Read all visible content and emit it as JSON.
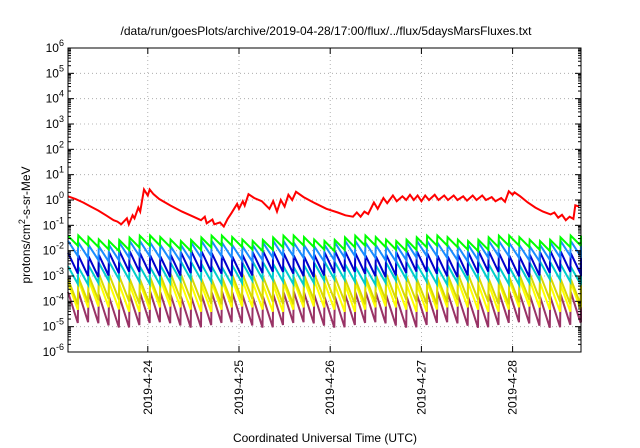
{
  "chart_data": {
    "type": "line",
    "title": "/data/run/goesPlots/archive/2019-04-28/17:00/flux/../flux/5daysMarsFluxes.txt",
    "xlabel": "Coordinated Universal Time (UTC)",
    "ylabel_parts": {
      "base": "protons/cm",
      "sup": "2",
      "rest": "-s-sr-MeV"
    },
    "y_scale": "log",
    "ylim": [
      1e-06,
      1000000.0
    ],
    "xlim": [
      "2019-04-23T03:00",
      "2019-04-28T18:00"
    ],
    "grid": true,
    "y_ticks": [
      {
        "exp": -6,
        "base": "10",
        "sup": "-6"
      },
      {
        "exp": -5,
        "base": "10",
        "sup": "-5"
      },
      {
        "exp": -4,
        "base": "10",
        "sup": "-4"
      },
      {
        "exp": -3,
        "base": "10",
        "sup": "-3"
      },
      {
        "exp": -2,
        "base": "10",
        "sup": "-2"
      },
      {
        "exp": -1,
        "base": "10",
        "sup": "-1"
      },
      {
        "exp": 0,
        "base": "10",
        "sup": "0"
      },
      {
        "exp": 1,
        "base": "10",
        "sup": "1"
      },
      {
        "exp": 2,
        "base": "10",
        "sup": "2"
      },
      {
        "exp": 3,
        "base": "10",
        "sup": "3"
      },
      {
        "exp": 4,
        "base": "10",
        "sup": "4"
      },
      {
        "exp": 5,
        "base": "10",
        "sup": "5"
      },
      {
        "exp": 6,
        "base": "10",
        "sup": "6"
      }
    ],
    "x_ticks": [
      {
        "t": "2019-04-24T00:00",
        "label": "2019-4-24"
      },
      {
        "t": "2019-04-25T00:00",
        "label": "2019-4-25"
      },
      {
        "t": "2019-04-26T00:00",
        "label": "2019-4-26"
      },
      {
        "t": "2019-04-27T00:00",
        "label": "2019-4-27"
      },
      {
        "t": "2019-04-28T00:00",
        "label": "2019-4-28"
      }
    ],
    "series": [
      {
        "color": "#ff0000",
        "values": [
          [
            "2019-04-23T03:00",
            1.4
          ],
          [
            "2019-04-23T05:00",
            1.1
          ],
          [
            "2019-04-23T07:00",
            0.8
          ],
          [
            "2019-04-23T09:00",
            0.55
          ],
          [
            "2019-04-23T11:00",
            0.38
          ],
          [
            "2019-04-23T13:00",
            0.25
          ],
          [
            "2019-04-23T15:00",
            0.16
          ],
          [
            "2019-04-23T16:00",
            0.14
          ],
          [
            "2019-04-23T17:00",
            0.11
          ],
          [
            "2019-04-23T18:30",
            0.19
          ],
          [
            "2019-04-23T19:00",
            0.11
          ],
          [
            "2019-04-23T20:00",
            0.25
          ],
          [
            "2019-04-23T20:30",
            0.19
          ],
          [
            "2019-04-23T21:30",
            0.5
          ],
          [
            "2019-04-23T22:00",
            0.35
          ],
          [
            "2019-04-23T23:00",
            2.6
          ],
          [
            "2019-04-24T00:00",
            1.5
          ],
          [
            "2019-04-24T00:30",
            2.6
          ],
          [
            "2019-04-24T01:30",
            1.7
          ],
          [
            "2019-04-24T03:00",
            1.1
          ],
          [
            "2019-04-24T06:00",
            0.6
          ],
          [
            "2019-04-24T09:00",
            0.35
          ],
          [
            "2019-04-24T12:00",
            0.22
          ],
          [
            "2019-04-24T14:00",
            0.16
          ],
          [
            "2019-04-24T15:00",
            0.22
          ],
          [
            "2019-04-24T15:30",
            0.12
          ],
          [
            "2019-04-24T17:00",
            0.17
          ],
          [
            "2019-04-24T17:30",
            0.11
          ],
          [
            "2019-04-24T19:00",
            0.13
          ],
          [
            "2019-04-24T20:00",
            0.09
          ],
          [
            "2019-04-24T21:00",
            0.18
          ],
          [
            "2019-04-24T22:00",
            0.3
          ],
          [
            "2019-04-24T23:30",
            0.7
          ],
          [
            "2019-04-25T00:00",
            0.45
          ],
          [
            "2019-04-25T01:00",
            0.9
          ],
          [
            "2019-04-25T01:30",
            0.6
          ],
          [
            "2019-04-25T02:30",
            1.7
          ],
          [
            "2019-04-25T04:00",
            1.2
          ],
          [
            "2019-04-25T06:00",
            0.9
          ],
          [
            "2019-04-25T08:00",
            0.45
          ],
          [
            "2019-04-25T09:00",
            0.9
          ],
          [
            "2019-04-25T10:00",
            0.35
          ],
          [
            "2019-04-25T11:00",
            1.0
          ],
          [
            "2019-04-25T12:00",
            0.55
          ],
          [
            "2019-04-25T13:00",
            1.6
          ],
          [
            "2019-04-25T14:00",
            1.0
          ],
          [
            "2019-04-25T15:00",
            2.1
          ],
          [
            "2019-04-25T17:00",
            1.3
          ],
          [
            "2019-04-25T20:00",
            0.75
          ],
          [
            "2019-04-25T23:00",
            0.45
          ],
          [
            "2019-04-26T02:00",
            0.32
          ],
          [
            "2019-04-26T04:00",
            0.25
          ],
          [
            "2019-04-26T06:00",
            0.22
          ],
          [
            "2019-04-26T07:00",
            0.32
          ],
          [
            "2019-04-26T08:00",
            0.22
          ],
          [
            "2019-04-26T09:00",
            0.35
          ],
          [
            "2019-04-26T10:00",
            0.28
          ],
          [
            "2019-04-26T11:30",
            0.8
          ],
          [
            "2019-04-26T12:30",
            0.45
          ],
          [
            "2019-04-26T14:00",
            1.2
          ],
          [
            "2019-04-26T15:00",
            0.75
          ],
          [
            "2019-04-26T16:30",
            1.5
          ],
          [
            "2019-04-26T17:30",
            0.9
          ],
          [
            "2019-04-26T19:00",
            1.4
          ],
          [
            "2019-04-26T20:00",
            1.0
          ],
          [
            "2019-04-26T21:00",
            1.6
          ],
          [
            "2019-04-26T22:00",
            1.0
          ],
          [
            "2019-04-26T23:00",
            1.5
          ],
          [
            "2019-04-27T00:00",
            0.9
          ],
          [
            "2019-04-27T01:00",
            1.5
          ],
          [
            "2019-04-27T02:00",
            1.0
          ],
          [
            "2019-04-27T03:30",
            1.6
          ],
          [
            "2019-04-27T04:30",
            1.0
          ],
          [
            "2019-04-27T06:00",
            1.5
          ],
          [
            "2019-04-27T07:00",
            1.0
          ],
          [
            "2019-04-27T08:30",
            1.5
          ],
          [
            "2019-04-27T09:30",
            1.0
          ],
          [
            "2019-04-27T11:00",
            1.4
          ],
          [
            "2019-04-27T12:00",
            0.95
          ],
          [
            "2019-04-27T13:30",
            1.5
          ],
          [
            "2019-04-27T14:30",
            1.0
          ],
          [
            "2019-04-27T16:00",
            1.5
          ],
          [
            "2019-04-27T17:00",
            1.0
          ],
          [
            "2019-04-27T18:30",
            1.3
          ],
          [
            "2019-04-27T19:30",
            0.9
          ],
          [
            "2019-04-27T21:00",
            1.2
          ],
          [
            "2019-04-27T22:00",
            0.85
          ],
          [
            "2019-04-27T23:00",
            2.2
          ],
          [
            "2019-04-28T00:00",
            1.6
          ],
          [
            "2019-04-28T00:30",
            2.0
          ],
          [
            "2019-04-28T02:00",
            1.4
          ],
          [
            "2019-04-28T04:00",
            0.8
          ],
          [
            "2019-04-28T06:00",
            0.5
          ],
          [
            "2019-04-28T08:00",
            0.35
          ],
          [
            "2019-04-28T10:00",
            0.27
          ],
          [
            "2019-04-28T11:00",
            0.32
          ],
          [
            "2019-04-28T12:00",
            0.2
          ],
          [
            "2019-04-28T13:00",
            0.26
          ],
          [
            "2019-04-28T14:00",
            0.16
          ],
          [
            "2019-04-28T15:00",
            0.22
          ],
          [
            "2019-04-28T16:00",
            0.18
          ],
          [
            "2019-04-28T16:30",
            0.62
          ],
          [
            "2019-04-28T17:30",
            0.55
          ]
        ]
      },
      {
        "color": "#00ff00",
        "sawtooth": {
          "low": 0.013,
          "high": 0.032,
          "period_h": 2.7
        }
      },
      {
        "color": "#1a8cff",
        "sawtooth": {
          "low": 0.005,
          "high": 0.02,
          "period_h": 2.7
        }
      },
      {
        "color": "#0000cc",
        "sawtooth": {
          "low": 0.0012,
          "high": 0.008,
          "period_h": 2.7
        }
      },
      {
        "color": "#00cccc",
        "sawtooth": {
          "low": 0.0006,
          "high": 0.003,
          "period_h": 2.7
        }
      },
      {
        "color": "#d9d900",
        "sawtooth": {
          "low": 0.0001,
          "high": 0.001,
          "period_h": 2.7
        }
      },
      {
        "color": "#ffff00",
        "sawtooth": {
          "low": 5e-05,
          "high": 0.0006,
          "period_h": 2.7
        }
      },
      {
        "color": "#993366",
        "sawtooth": {
          "low": 1.2e-05,
          "high": 0.0002,
          "period_h": 2.7
        }
      }
    ]
  }
}
